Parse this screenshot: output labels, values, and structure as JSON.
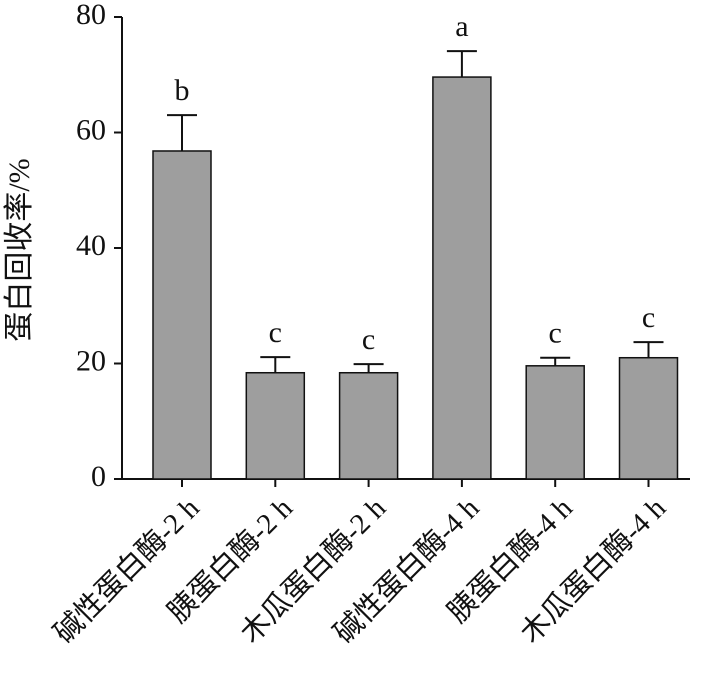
{
  "chart_data": {
    "type": "bar",
    "y_label": "蛋白回收率/%",
    "categories": [
      "碱性蛋白酶-2 h",
      "胰蛋白酶-2 h",
      "木瓜蛋白酶-2 h",
      "碱性蛋白酶-4 h",
      "胰蛋白酶-4 h",
      "木瓜蛋白酶-4 h"
    ],
    "values": [
      56.8,
      18.4,
      18.4,
      69.6,
      19.6,
      21.0
    ],
    "errors": [
      6.2,
      2.7,
      1.5,
      4.5,
      1.4,
      2.7
    ],
    "significance_letters": [
      "b",
      "c",
      "c",
      "a",
      "c",
      "c"
    ],
    "color": "#9e9e9e",
    "ylim": [
      0,
      80
    ],
    "yticks": [
      0,
      20,
      40,
      60,
      80
    ],
    "grid": false
  }
}
